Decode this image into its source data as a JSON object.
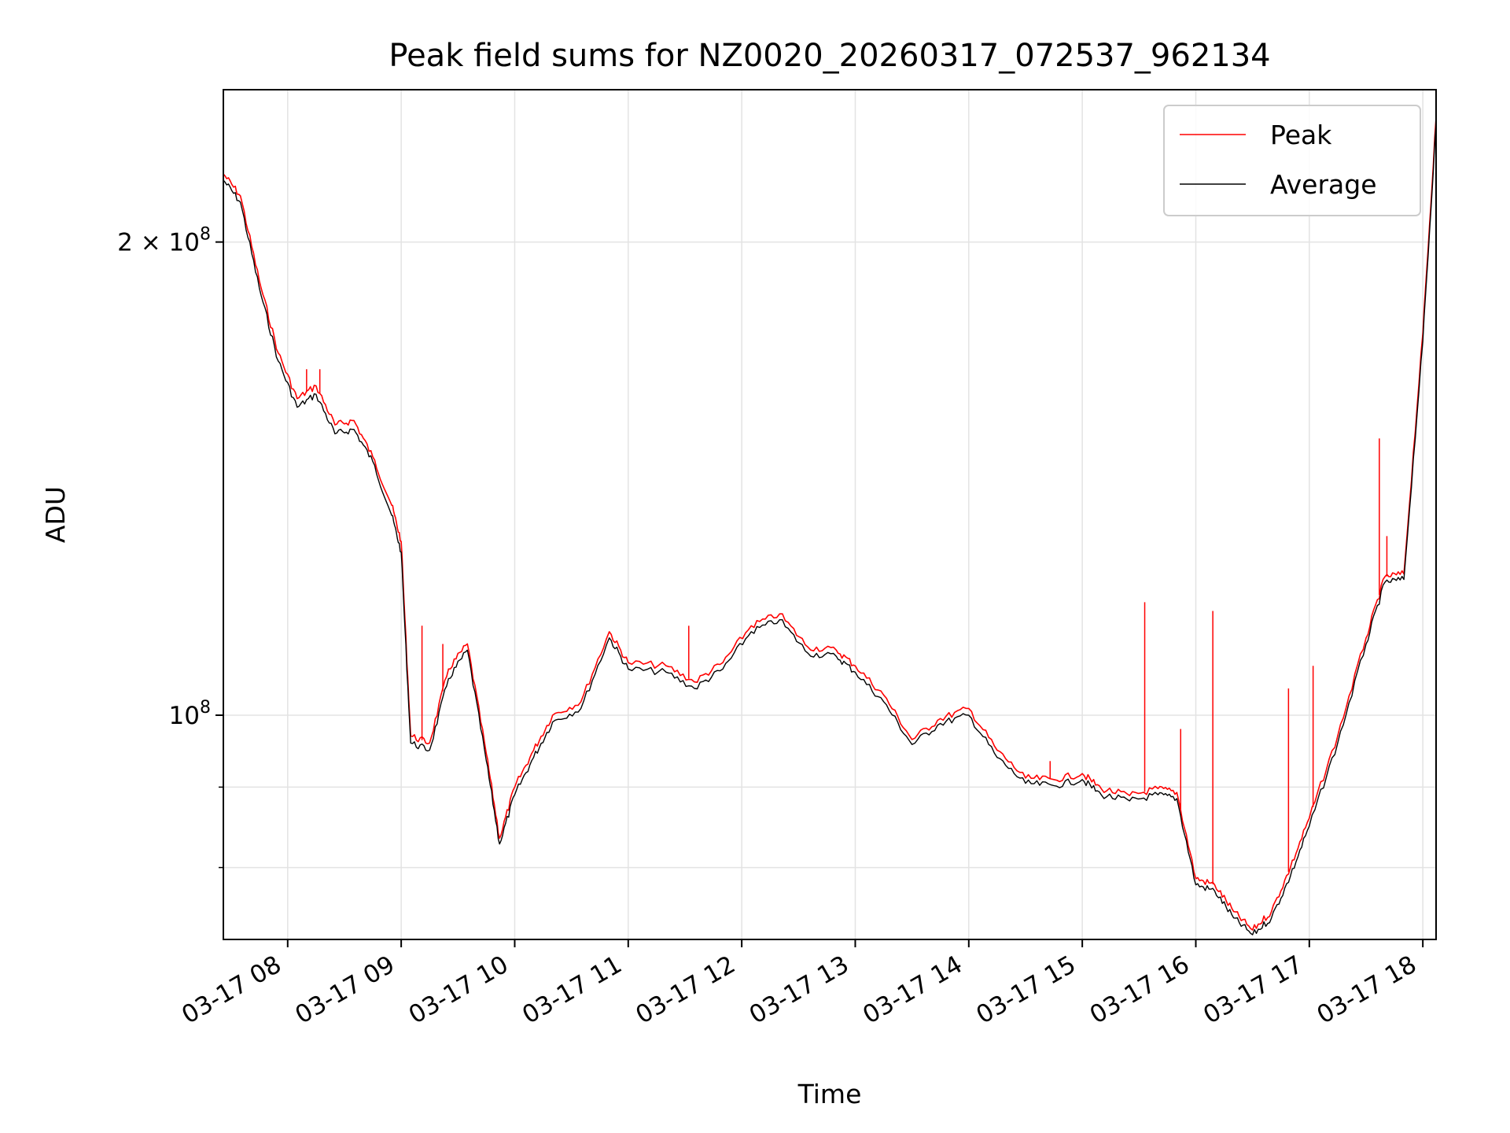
{
  "chart_data": {
    "type": "line",
    "title": "Peak field sums for NZ0020_20260317_072537_962134",
    "xlabel": "Time",
    "ylabel": "ADU",
    "xscale": "time",
    "yscale": "log",
    "xlim": [
      "03-17 07:26",
      "03-17 18:07"
    ],
    "ylim": [
      72000000,
      250000000
    ],
    "xticks": [
      "03-17 08",
      "03-17 09",
      "03-17 10",
      "03-17 11",
      "03-17 12",
      "03-17 13",
      "03-17 14",
      "03-17 15",
      "03-17 16",
      "03-17 17",
      "03-17 18"
    ],
    "yticks": [
      {
        "value": 100000000,
        "base": "10",
        "exp": "8",
        "prefix": ""
      },
      {
        "value": 200000000,
        "base": "10",
        "exp": "8",
        "prefix": "2 × "
      }
    ],
    "minor_yticks": [
      80000000,
      90000000
    ],
    "grid": true,
    "legend": "top-right",
    "x": [
      "07:26",
      "07:35",
      "07:45",
      "07:55",
      "08:05",
      "08:15",
      "08:25",
      "08:35",
      "08:45",
      "08:55",
      "09:00",
      "09:05",
      "09:15",
      "09:25",
      "09:35",
      "09:45",
      "09:52",
      "10:00",
      "10:10",
      "10:20",
      "10:35",
      "10:50",
      "11:00",
      "11:20",
      "11:35",
      "11:50",
      "12:05",
      "12:20",
      "12:35",
      "12:50",
      "13:00",
      "13:15",
      "13:30",
      "13:45",
      "14:00",
      "14:15",
      "14:30",
      "14:45",
      "15:00",
      "15:10",
      "15:25",
      "15:40",
      "15:50",
      "16:00",
      "16:10",
      "16:20",
      "16:30",
      "16:40",
      "16:50",
      "17:00",
      "17:15",
      "17:30",
      "17:40",
      "17:50",
      "18:00",
      "18:07"
    ],
    "series": [
      {
        "name": "Peak",
        "color": "#ff0000",
        "values": [
          221000000,
          214000000,
          189000000,
          170000000,
          159000000,
          162000000,
          153000000,
          154000000,
          146000000,
          136000000,
          129000000,
          97000000,
          96000000,
          107000000,
          111000000,
          94500000,
          83500000,
          90000000,
          95000000,
          100000000,
          102000000,
          113000000,
          108000000,
          107500000,
          105000000,
          108000000,
          114000000,
          116000000,
          110500000,
          110000000,
          107500000,
          103000000,
          96500000,
          99500000,
          101000000,
          95000000,
          91200000,
          91000000,
          91800000,
          89800000,
          88900000,
          89800000,
          89300000,
          78700000,
          78000000,
          75000000,
          73000000,
          75000000,
          80000000,
          86000000,
          97000000,
          112000000,
          122500000,
          123000000,
          175000000,
          240000000
        ]
      },
      {
        "name": "Average",
        "color": "#000000",
        "values": [
          219000000,
          212000000,
          187000000,
          168000000,
          157000000,
          160000000,
          151000000,
          152000000,
          145000000,
          134000000,
          127000000,
          96000000,
          95000000,
          105500000,
          110000000,
          93500000,
          82800000,
          89000000,
          94000000,
          99000000,
          101000000,
          112000000,
          107000000,
          106500000,
          104000000,
          107000000,
          113000000,
          115000000,
          109500000,
          109000000,
          106500000,
          102000000,
          95800000,
          98800000,
          100000000,
          94000000,
          90500000,
          90200000,
          91000000,
          89000000,
          88200000,
          89000000,
          88500000,
          78000000,
          77300000,
          74300000,
          72500000,
          74300000,
          79000000,
          85000000,
          96000000,
          111000000,
          121500000,
          122000000,
          173000000,
          238000000
        ]
      }
    ],
    "spikes": [
      {
        "x": "08:10",
        "value": 166000000
      },
      {
        "x": "08:17",
        "value": 166000000
      },
      {
        "x": "09:11",
        "value": 114000000
      },
      {
        "x": "09:22",
        "value": 111000000
      },
      {
        "x": "11:32",
        "value": 114000000
      },
      {
        "x": "14:43",
        "value": 93500000
      },
      {
        "x": "15:33",
        "value": 118000000
      },
      {
        "x": "15:52",
        "value": 98000000
      },
      {
        "x": "16:09",
        "value": 116500000
      },
      {
        "x": "16:49",
        "value": 104000000
      },
      {
        "x": "17:02",
        "value": 107500000
      },
      {
        "x": "17:37",
        "value": 150000000
      },
      {
        "x": "17:41",
        "value": 130000000
      }
    ]
  }
}
